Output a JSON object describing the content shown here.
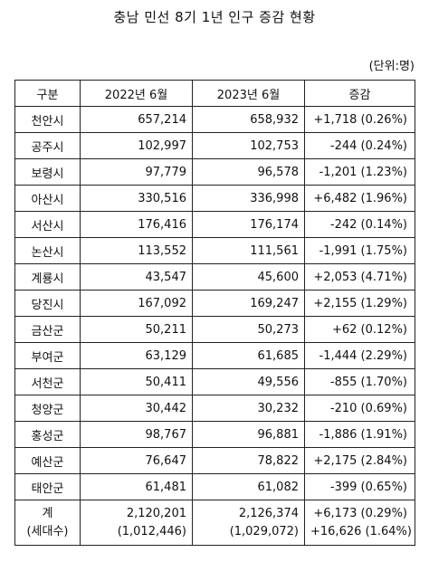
{
  "title": "충남 민선 8기 1년 인구 증감 현황",
  "unit": "(단위:명)",
  "headers": [
    "구분",
    "2022년 6월",
    "2023년 6월",
    "증감"
  ],
  "rows": [
    {
      "name": "천안시",
      "y2022": "657,214",
      "y2023": "658,932",
      "change": "+1,718  (0.26%)"
    },
    {
      "name": "공주시",
      "y2022": "102,997",
      "y2023": "102,753",
      "change": "-244  (0.24%)"
    },
    {
      "name": "보령시",
      "y2022": "97,779",
      "y2023": "96,578",
      "change": "-1,201  (1.23%)"
    },
    {
      "name": "아산시",
      "y2022": "330,516",
      "y2023": "336,998",
      "change": "+6,482  (1.96%)"
    },
    {
      "name": "서산시",
      "y2022": "176,416",
      "y2023": "176,174",
      "change": "-242  (0.14%)"
    },
    {
      "name": "논산시",
      "y2022": "113,552",
      "y2023": "111,561",
      "change": "-1,991  (1.75%)"
    },
    {
      "name": "계룡시",
      "y2022": "43,547",
      "y2023": "45,600",
      "change": "+2,053  (4.71%)"
    },
    {
      "name": "당진시",
      "y2022": "167,092",
      "y2023": "169,247",
      "change": "+2,155  (1.29%)"
    },
    {
      "name": "금산군",
      "y2022": "50,211",
      "y2023": "50,273",
      "change": "+62  (0.12%)"
    },
    {
      "name": "부여군",
      "y2022": "63,129",
      "y2023": "61,685",
      "change": "-1,444  (2.29%)"
    },
    {
      "name": "서천군",
      "y2022": "50,411",
      "y2023": "49,556",
      "change": "-855  (1.70%)"
    },
    {
      "name": "청양군",
      "y2022": "30,442",
      "y2023": "30,232",
      "change": "-210  (0.69%)"
    },
    {
      "name": "홍성군",
      "y2022": "98,767",
      "y2023": "96,881",
      "change": "-1,886  (1.91%)"
    },
    {
      "name": "예산군",
      "y2022": "76,647",
      "y2023": "78,822",
      "change": "+2,175  (2.84%)"
    },
    {
      "name": "태안군",
      "y2022": "61,481",
      "y2023": "61,082",
      "change": "-399  (0.65%)"
    }
  ],
  "total": {
    "name": "계",
    "name2": "(세대수)",
    "y2022": "2,120,201",
    "y2022_households": "(1,012,446)",
    "y2023": "2,126,374",
    "y2023_households": "(1,029,072)",
    "change": "+6,173  (0.29%)",
    "change_households": "+16,626  (1.64%)"
  }
}
